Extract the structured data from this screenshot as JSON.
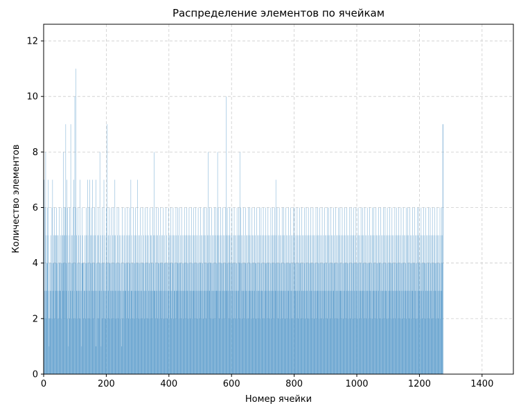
{
  "chart_data": {
    "type": "bar",
    "title": "Распределение элементов по ячейкам",
    "xlabel": "Номер ячейки",
    "ylabel": "Количество элементов",
    "xlim": [
      0,
      1500
    ],
    "ylim": [
      0,
      12.6
    ],
    "x_ticks": [
      "0",
      "200",
      "400",
      "600",
      "800",
      "1000",
      "1200",
      "1400"
    ],
    "y_ticks": [
      "0",
      "2",
      "4",
      "6",
      "8",
      "10",
      "12"
    ],
    "grid": true,
    "bar_color": "#5f9ecc",
    "cell_count": 1384,
    "values": [
      4,
      7,
      2,
      3,
      6,
      3,
      8,
      5,
      2,
      4,
      3,
      6,
      4,
      5,
      7,
      3,
      2,
      1,
      2,
      4,
      3,
      4,
      5,
      2,
      3,
      4,
      6,
      2,
      7,
      4,
      3,
      4,
      5,
      2,
      6,
      3,
      5,
      4,
      3,
      5,
      4,
      6,
      3,
      5,
      2,
      4,
      5,
      2,
      3,
      4,
      6,
      3,
      4,
      5,
      3,
      4,
      2,
      6,
      5,
      4,
      3,
      5,
      4,
      8,
      5,
      3,
      6,
      4,
      5,
      6,
      9,
      3,
      4,
      7,
      5,
      2,
      6,
      4,
      3,
      1,
      4,
      5,
      6,
      2,
      3,
      4,
      9,
      3,
      5,
      2,
      4,
      3,
      5,
      4,
      6,
      2,
      7,
      3,
      5,
      10,
      4,
      2,
      6,
      11,
      3,
      5,
      4,
      2,
      3,
      6,
      4,
      5,
      3,
      2,
      4,
      7,
      3,
      5,
      2,
      4,
      3,
      1,
      6,
      4,
      5,
      4,
      2,
      4,
      3,
      3,
      4,
      5,
      3,
      2,
      4,
      6,
      5,
      3,
      4,
      2,
      7,
      5,
      3,
      4,
      2,
      6,
      3,
      7,
      4,
      5,
      2,
      4,
      6,
      3,
      5,
      4,
      7,
      3,
      2,
      4,
      5,
      3,
      6,
      4,
      3,
      5,
      7,
      1,
      3,
      4,
      2,
      5,
      4,
      3,
      6,
      2,
      5,
      4,
      3,
      8,
      4,
      3,
      5,
      1,
      4,
      3,
      2,
      6,
      4,
      5,
      3,
      4,
      7,
      2,
      3,
      5,
      4,
      3,
      2,
      4,
      6,
      5,
      9,
      3,
      4,
      2,
      5,
      3,
      4,
      6,
      2,
      4,
      5,
      3,
      4,
      6,
      3,
      2,
      4,
      5,
      3,
      6,
      4,
      3,
      2,
      5,
      4,
      7,
      3,
      5,
      2,
      4,
      3,
      4,
      6,
      3,
      5,
      2,
      4,
      3,
      6,
      4,
      5,
      3,
      2,
      4,
      5,
      3,
      1,
      4,
      6,
      2,
      3,
      5,
      4,
      3,
      2,
      4,
      5,
      6,
      3,
      4,
      3,
      5,
      2,
      4,
      3,
      6,
      5,
      4,
      3,
      2,
      5,
      4,
      6,
      3,
      4,
      2,
      7,
      5,
      3,
      4,
      3,
      2,
      4,
      5,
      6,
      4,
      3,
      2,
      5,
      4,
      3,
      6,
      4,
      5,
      2,
      3,
      4,
      7,
      4,
      3,
      5,
      2,
      4,
      3,
      5,
      4,
      6,
      3,
      2,
      4,
      5,
      3,
      4,
      2,
      6,
      4,
      3,
      5,
      4,
      2,
      3,
      4,
      6,
      3,
      5,
      2,
      4,
      3,
      5,
      6,
      4,
      2,
      3,
      5,
      4,
      3,
      4,
      6,
      2,
      5,
      3,
      4,
      5,
      3,
      2,
      4,
      6,
      3,
      5,
      4,
      8,
      3,
      5,
      3,
      2,
      4,
      3,
      6,
      5,
      4,
      3,
      2,
      5,
      4,
      6,
      3,
      4,
      2,
      5,
      3,
      4,
      6,
      4,
      3,
      5,
      2,
      4,
      3,
      5,
      4,
      6,
      3,
      2,
      4,
      5,
      3,
      4,
      2,
      6,
      4,
      3,
      5,
      4,
      2,
      3,
      4,
      6,
      3,
      5,
      2,
      4,
      3,
      5,
      6,
      4,
      2,
      3,
      5,
      4,
      3,
      4,
      6,
      2,
      5,
      3,
      4,
      5,
      3,
      2,
      4,
      6,
      3,
      5,
      4,
      3,
      6,
      4,
      5,
      3,
      4,
      2,
      6,
      3,
      4,
      5,
      4,
      3,
      2,
      6,
      4,
      5,
      3,
      4,
      2,
      3,
      5,
      4,
      6,
      3,
      4,
      5,
      2,
      3,
      4,
      6,
      5,
      3,
      4,
      2,
      5,
      4,
      3,
      6,
      4,
      5,
      2,
      3,
      4,
      5,
      3,
      6,
      4,
      2,
      3,
      5,
      4,
      6,
      3,
      4,
      5,
      3,
      2,
      4,
      6,
      5,
      3,
      4,
      2,
      5,
      3,
      4,
      6,
      3,
      4,
      5,
      2,
      4,
      3,
      6,
      4,
      5,
      3,
      2,
      4,
      5,
      3,
      4,
      6,
      2,
      3,
      5,
      4,
      6,
      3,
      4,
      5,
      3,
      2,
      4,
      6,
      5,
      3,
      4,
      8,
      5,
      3,
      4,
      6,
      3,
      4,
      5,
      2,
      4,
      3,
      6,
      4,
      5,
      3,
      2,
      4,
      5,
      3,
      4,
      6,
      2,
      3,
      5,
      4,
      6,
      3,
      4,
      5,
      3,
      8,
      4,
      6,
      5,
      3,
      4,
      2,
      5,
      3,
      4,
      6,
      3,
      4,
      5,
      2,
      4,
      3,
      6,
      4,
      5,
      3,
      2,
      4,
      5,
      3,
      4,
      6,
      10,
      3,
      5,
      4,
      6,
      3,
      4,
      5,
      3,
      2,
      4,
      6,
      5,
      3,
      4,
      2,
      5,
      3,
      4,
      6,
      3,
      4,
      5,
      2,
      4,
      3,
      6,
      4,
      5,
      3,
      2,
      4,
      5,
      3,
      4,
      6,
      2,
      3,
      5,
      4,
      6,
      3,
      4,
      5,
      8,
      2,
      4,
      6,
      5,
      3,
      4,
      2,
      5,
      3,
      4,
      6,
      3,
      4,
      5,
      2,
      4,
      3,
      6,
      4,
      5,
      3,
      2,
      4,
      5,
      3,
      4,
      6,
      2,
      3,
      5,
      4,
      6,
      3,
      4,
      5,
      3,
      2,
      4,
      6,
      5,
      3,
      4,
      2,
      5,
      3,
      4,
      6,
      3,
      4,
      5,
      2,
      4,
      3,
      6,
      4,
      5,
      3,
      2,
      4,
      5,
      3,
      4,
      6,
      2,
      3,
      5,
      4,
      6,
      3,
      4,
      5,
      3,
      2,
      4,
      6,
      5,
      3,
      4,
      2,
      5,
      3,
      4,
      6,
      3,
      4,
      5,
      2,
      4,
      3,
      6,
      4,
      5,
      3,
      2,
      4,
      5,
      3,
      4,
      6,
      2,
      3,
      5,
      4,
      6,
      3,
      4,
      5,
      3,
      2,
      4,
      6,
      5,
      3,
      4,
      7,
      5,
      3,
      4,
      6,
      3,
      4,
      5,
      2,
      4,
      3,
      6,
      4,
      5,
      3,
      2,
      4,
      5,
      3,
      4,
      6,
      2,
      3,
      5,
      4,
      6,
      3,
      4,
      5,
      3,
      2,
      4,
      6,
      5,
      3,
      4,
      2,
      5,
      3,
      4,
      6,
      3,
      4,
      5,
      2,
      4,
      3,
      6,
      4,
      5,
      3,
      2,
      4,
      5,
      3,
      4,
      6,
      2,
      3,
      5,
      4,
      6,
      3,
      4,
      5,
      3,
      2,
      4,
      6,
      5,
      3,
      4,
      2,
      5,
      3,
      4,
      6,
      3,
      4,
      5,
      2,
      4,
      3,
      6,
      4,
      5,
      3,
      2,
      4,
      5,
      3,
      4,
      6,
      2,
      3,
      5,
      4,
      6,
      3,
      4,
      5,
      3,
      2,
      4,
      6,
      5,
      3,
      4,
      2,
      5,
      3,
      4,
      6,
      3,
      4,
      5,
      2,
      4,
      3,
      6,
      4,
      5,
      3,
      2,
      4,
      5,
      3,
      4,
      6,
      2,
      3,
      5,
      4,
      6,
      3,
      4,
      5,
      3,
      2,
      4,
      6,
      5,
      3,
      4,
      2,
      5,
      3,
      4,
      6,
      3,
      4,
      5,
      2,
      4,
      3,
      6,
      4,
      5,
      3,
      2,
      4,
      5,
      3,
      4,
      6,
      2,
      3,
      5,
      4,
      6,
      3,
      4,
      5,
      3,
      2,
      4,
      6,
      5,
      3,
      4,
      2,
      5,
      3,
      4,
      6,
      3,
      4,
      5,
      2,
      4,
      3,
      6,
      4,
      5,
      3,
      2,
      4,
      5,
      3,
      4,
      6,
      2,
      3,
      5,
      4,
      6,
      3,
      4,
      5,
      3,
      2,
      4,
      6,
      5,
      3,
      4,
      2,
      5,
      3,
      4,
      6,
      3,
      4,
      5,
      2,
      4,
      3,
      6,
      4,
      5,
      3,
      2,
      4,
      5,
      3,
      4,
      6,
      2,
      3,
      5,
      4,
      6,
      3,
      4,
      5,
      3,
      2,
      4,
      6,
      5,
      3,
      4,
      2,
      5,
      3,
      4,
      6,
      3,
      4,
      5,
      2,
      4,
      3,
      6,
      4,
      5,
      3,
      2,
      4,
      5,
      3,
      4,
      6,
      2,
      3,
      5,
      4,
      6,
      3,
      4,
      5,
      3,
      2,
      4,
      6,
      5,
      3,
      4,
      2,
      5,
      3,
      4,
      6,
      3,
      4,
      5,
      2,
      4,
      3,
      6,
      4,
      5,
      3,
      2,
      4,
      5,
      3,
      4,
      6,
      2,
      3,
      5,
      4,
      6,
      3,
      4,
      5,
      3,
      2,
      4,
      6,
      5,
      3,
      4,
      2,
      5,
      3,
      4,
      6,
      3,
      4,
      5,
      2,
      4,
      3,
      6,
      4,
      5,
      3,
      2,
      4,
      5,
      3,
      4,
      6,
      2,
      3,
      5,
      4,
      6,
      3,
      4,
      5,
      3,
      2,
      4,
      6,
      5,
      3,
      4,
      2,
      5,
      3,
      4,
      6,
      3,
      4,
      5,
      2,
      4,
      3,
      6,
      4,
      5,
      3,
      2,
      4,
      5,
      3,
      4,
      6,
      2,
      3,
      5,
      4,
      6,
      3,
      4,
      5,
      3,
      2,
      4,
      6,
      5,
      3,
      4,
      2,
      5,
      3,
      4,
      6,
      3,
      4,
      5,
      2,
      4,
      3,
      6,
      4,
      5,
      3,
      2,
      4,
      5,
      3,
      4,
      6,
      2,
      3,
      5,
      4,
      6,
      3,
      4,
      5,
      3,
      2,
      4,
      6,
      5,
      3,
      4,
      2,
      5,
      3,
      4,
      6,
      3,
      4,
      5,
      2,
      4,
      3,
      6,
      4,
      5,
      3,
      2,
      4,
      5,
      3,
      4,
      6,
      2,
      3,
      5,
      4,
      6,
      3,
      4,
      5,
      3,
      2,
      4,
      6,
      5,
      3,
      4,
      2,
      5,
      3,
      4,
      6,
      3,
      4,
      5,
      2,
      4,
      3,
      6,
      4,
      5,
      3,
      2,
      4,
      5,
      3,
      4,
      6,
      2,
      3,
      5,
      4,
      6,
      3,
      4,
      5,
      3,
      2,
      4,
      6,
      5,
      3,
      4,
      2,
      5,
      3,
      4,
      6,
      3,
      4,
      5,
      2,
      4,
      3,
      6,
      4,
      5,
      3,
      2,
      4,
      5,
      3,
      4,
      6,
      2,
      3,
      5,
      4,
      6,
      3,
      4,
      5,
      9,
      9
    ]
  }
}
